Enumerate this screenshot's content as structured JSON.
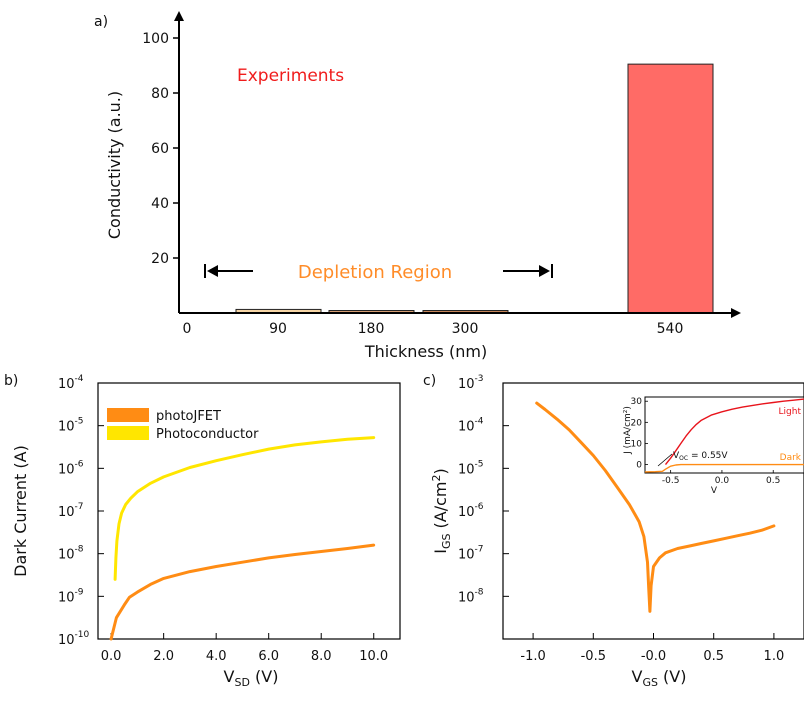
{
  "chart_data": [
    {
      "panel": "a)",
      "type": "bar",
      "xlabel": "Thickness  (nm)",
      "ylabel": "Conductivity (a.u.)",
      "ylim": [
        0,
        100
      ],
      "yticks": [
        "20",
        "40",
        "60",
        "80",
        "100"
      ],
      "xticks": [
        "0",
        "90",
        "180",
        "300",
        "540"
      ],
      "categories": [
        "90",
        "180",
        "300",
        "540"
      ],
      "values": [
        1.3,
        0.9,
        0.9,
        90.5
      ],
      "bar_colors": [
        "#f6d5a6",
        "#d8a074",
        "#c8875a",
        "#ff6b66"
      ],
      "annotations": {
        "experiments": "Experiments",
        "depletion": "Depletion Region"
      },
      "colors": {
        "experiments": "#f01c1c",
        "depletion": "#ff8c28"
      }
    },
    {
      "panel": "b)",
      "type": "line",
      "xlabel_main": "V",
      "xlabel_sub": "SD",
      "xlabel_unit": " (V)",
      "ylabel": "Dark Current (A)",
      "log_y": true,
      "xlim": [
        -0.5,
        11.0
      ],
      "ylim_exp": [
        -10,
        -4
      ],
      "xticks": [
        "0.0",
        "2.0",
        "4.0",
        "6.0",
        "8.0",
        "10.0"
      ],
      "ytick_exps": [
        "-4",
        "-5",
        "-6",
        "-7",
        "-8",
        "-9",
        "-10"
      ],
      "legend": [
        "photoJFET",
        "Photoconductor"
      ],
      "legend_position": "top-left",
      "series": [
        {
          "name": "photoJFET",
          "color": "#ff8c14",
          "x": [
            0.0,
            0.2,
            0.5,
            0.7,
            1.0,
            1.5,
            2.0,
            3.0,
            4.0,
            5.0,
            6.0,
            7.0,
            8.0,
            9.0,
            10.0
          ],
          "log10_y": [
            -10.0,
            -9.5,
            -9.2,
            -9.02,
            -8.9,
            -8.72,
            -8.58,
            -8.42,
            -8.3,
            -8.2,
            -8.1,
            -8.02,
            -7.95,
            -7.88,
            -7.8
          ]
        },
        {
          "name": "Photoconductor",
          "color": "#ffe600",
          "x": [
            0.15,
            0.18,
            0.22,
            0.3,
            0.4,
            0.55,
            0.75,
            1.0,
            1.5,
            2.0,
            3.0,
            4.0,
            5.0,
            6.0,
            7.0,
            8.0,
            9.0,
            10.0
          ],
          "log10_y": [
            -8.6,
            -8.1,
            -7.7,
            -7.3,
            -7.05,
            -6.85,
            -6.7,
            -6.55,
            -6.35,
            -6.2,
            -5.98,
            -5.82,
            -5.68,
            -5.55,
            -5.45,
            -5.38,
            -5.32,
            -5.28
          ]
        }
      ]
    },
    {
      "panel": "c)",
      "type": "line",
      "xlabel_main": "V",
      "xlabel_sub": "GS",
      "xlabel_unit": " (V)",
      "ylabel_main": "I",
      "ylabel_sub": "GS",
      "ylabel_unit": " (A/cm",
      "ylabel_sup": "2",
      "ylabel_close": ")",
      "log_y": true,
      "xlim": [
        -1.25,
        1.25
      ],
      "ylim_exp": [
        -9,
        -3
      ],
      "xticks": [
        -1.0,
        -0.5,
        0.0,
        0.5,
        1.0
      ],
      "xtick_labels": [
        "-1.0",
        "-0.5",
        "-0.0",
        "0.5",
        "1.0"
      ],
      "ytick_exps": [
        "-3",
        "-4",
        "-5",
        "-6",
        "-7",
        "-8"
      ],
      "series": [
        {
          "color": "#ff8c14",
          "x": [
            -0.97,
            -0.9,
            -0.8,
            -0.7,
            -0.6,
            -0.5,
            -0.4,
            -0.3,
            -0.2,
            -0.12,
            -0.08,
            -0.05,
            -0.04,
            -0.03,
            -0.02,
            0.0,
            0.05,
            0.1,
            0.2,
            0.3,
            0.4,
            0.5,
            0.6,
            0.7,
            0.8,
            0.9,
            1.0
          ],
          "log10_y": [
            -3.47,
            -3.62,
            -3.85,
            -4.1,
            -4.4,
            -4.7,
            -5.05,
            -5.45,
            -5.85,
            -6.25,
            -6.6,
            -7.2,
            -7.8,
            -8.35,
            -7.75,
            -7.3,
            -7.1,
            -6.98,
            -6.88,
            -6.82,
            -6.76,
            -6.7,
            -6.64,
            -6.58,
            -6.52,
            -6.45,
            -6.35
          ]
        }
      ],
      "inset": {
        "xlabel": "V",
        "ylabel": "J  (mA/cm²)",
        "xlim": [
          -0.75,
          0.8
        ],
        "ylim": [
          -4,
          32
        ],
        "xticks": [
          "-0.5",
          "0.0",
          "0.5"
        ],
        "yticks": [
          "0",
          "10",
          "20",
          "30"
        ],
        "annotation": "V",
        "annotation_sub": "OC",
        "annotation_val": " = 0.55V",
        "series": [
          {
            "name": "Light",
            "color": "#e8141c",
            "x": [
              -0.55,
              -0.5,
              -0.45,
              -0.4,
              -0.35,
              -0.3,
              -0.25,
              -0.2,
              -0.1,
              0.0,
              0.1,
              0.2,
              0.3,
              0.4,
              0.5,
              0.6,
              0.7,
              0.8
            ],
            "y": [
              0,
              3.0,
              6.5,
              10.0,
              13.5,
              16.5,
              19.0,
              21.0,
              23.5,
              25.0,
              26.2,
              27.2,
              28.0,
              28.8,
              29.4,
              30.0,
              30.5,
              31.0
            ]
          },
          {
            "name": "Dark",
            "color": "#ff8c14",
            "x": [
              -0.75,
              -0.65,
              -0.58,
              -0.55,
              -0.5,
              -0.45,
              -0.4,
              -0.3,
              0.0,
              0.4,
              0.8
            ],
            "y": [
              -3.5,
              -3.4,
              -3.2,
              -2.2,
              -0.8,
              -0.2,
              0.0,
              0.0,
              0.0,
              0.0,
              0.0
            ]
          }
        ]
      }
    }
  ]
}
